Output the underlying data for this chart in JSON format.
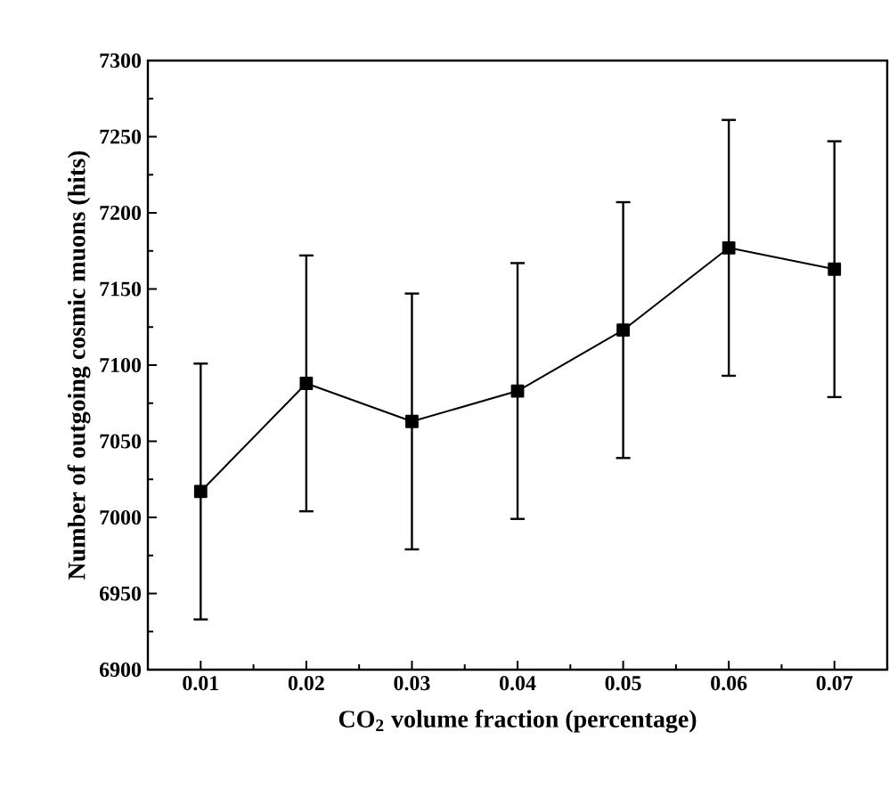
{
  "chart_data": {
    "type": "line",
    "xlabel": "CO$_{2}$ volume fraction (percentage)",
    "ylabel": "Number of outgoing cosmic muons (hits)",
    "x": [
      0.01,
      0.02,
      0.03,
      0.04,
      0.05,
      0.06,
      0.07
    ],
    "series": [
      {
        "color": "#000000",
        "values": [
          7017,
          7088,
          7063,
          7083,
          7123,
          7177,
          7163
        ],
        "errors": [
          84,
          84,
          84,
          84,
          84,
          84,
          84
        ]
      }
    ],
    "xlim": [
      0.005,
      0.075
    ],
    "xticks": [
      {
        "value": 0.01,
        "label": "0.01"
      },
      {
        "value": 0.02,
        "label": "0.02"
      },
      {
        "value": 0.03,
        "label": "0.03"
      },
      {
        "value": 0.04,
        "label": "0.04"
      },
      {
        "value": 0.05,
        "label": "0.05"
      },
      {
        "value": 0.06,
        "label": "0.06"
      },
      {
        "value": 0.07,
        "label": "0.07"
      }
    ],
    "ylim": [
      6900,
      7300
    ],
    "yticks": [
      6900,
      6950,
      7000,
      7050,
      7100,
      7150,
      7200,
      7250,
      7300
    ],
    "marker": "square",
    "line_style": "solid",
    "grid": false
  }
}
